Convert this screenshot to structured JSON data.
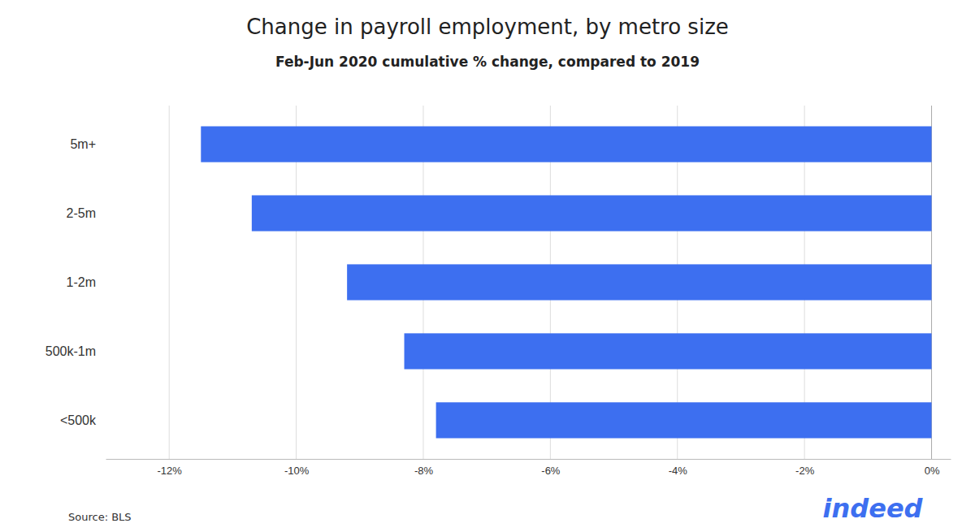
{
  "chart_data": {
    "type": "bar",
    "orientation": "horizontal",
    "title": "Change in payroll employment, by metro size",
    "subtitle": "Feb-Jun 2020 cumulative % change, compared to 2019",
    "categories": [
      "5m+",
      "2-5m",
      "1-2m",
      "500k-1m",
      "<500k"
    ],
    "values": [
      -11.5,
      -10.7,
      -9.2,
      -8.3,
      -7.8
    ],
    "color": "#3d6ff0",
    "xlim": [
      -13,
      0.3
    ],
    "xticks": [
      {
        "value": -12,
        "label": "-12%"
      },
      {
        "value": -10,
        "label": "-10%"
      },
      {
        "value": -8,
        "label": "-8%"
      },
      {
        "value": -6,
        "label": "-6%"
      },
      {
        "value": -4,
        "label": "-4%"
      },
      {
        "value": -2,
        "label": "-2%"
      },
      {
        "value": 0,
        "label": "0%"
      }
    ],
    "grid": true,
    "annotations": [
      "Source: BLS",
      "indeed"
    ]
  }
}
